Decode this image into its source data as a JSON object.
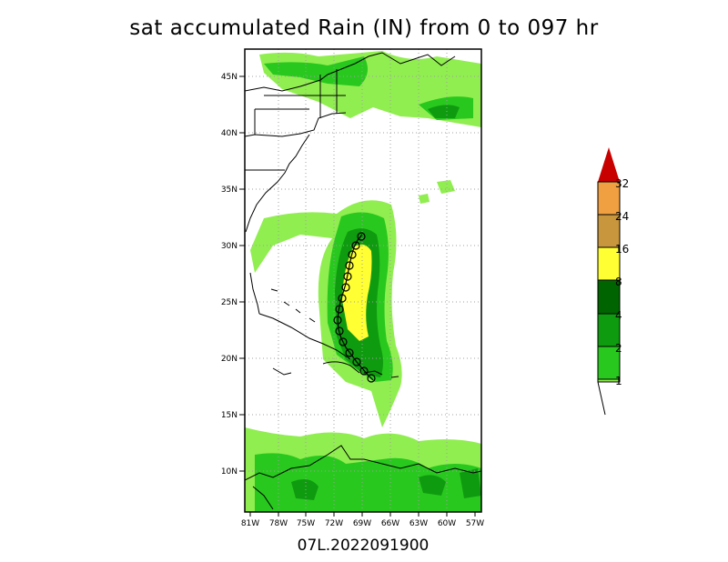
{
  "title": "sat accumulated Rain (IN) from 0 to 097 hr",
  "subtitle": "07L.2022091900",
  "lat_labels": [
    "45N",
    "40N",
    "35N",
    "30N",
    "25N",
    "20N",
    "15N",
    "10N"
  ],
  "lon_labels": [
    "81W",
    "78W",
    "75W",
    "72W",
    "69W",
    "66W",
    "63W",
    "60W",
    "57W"
  ],
  "legend": {
    "labels": [
      "1",
      "2",
      "4",
      "8",
      "16",
      "24",
      "32"
    ],
    "colors": {
      "c1": "#90ee50",
      "c2": "#28c81e",
      "c3": "#0f9b0f",
      "c4": "#006400",
      "c5": "#ffff33",
      "c6": "#c8963c",
      "c7": "#f0a040",
      "top": "#c80000"
    }
  }
}
